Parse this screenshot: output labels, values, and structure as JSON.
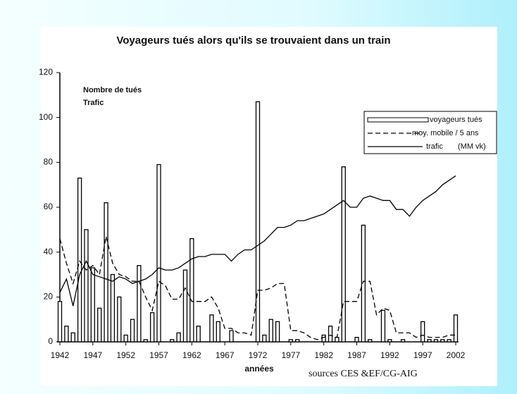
{
  "chart_data": {
    "type": "bar-line",
    "title": "Voyageurs tués alors qu'ils se trouvaient dans un train",
    "y_label_lines": [
      "Nombre de tués",
      "Trafic"
    ],
    "x_label": "années",
    "source": "sources CES &EF/CG-AIG",
    "x": [
      1942,
      1943,
      1944,
      1945,
      1946,
      1947,
      1948,
      1949,
      1950,
      1951,
      1952,
      1953,
      1954,
      1955,
      1956,
      1957,
      1958,
      1959,
      1960,
      1961,
      1962,
      1963,
      1964,
      1965,
      1966,
      1967,
      1968,
      1969,
      1970,
      1971,
      1972,
      1973,
      1974,
      1975,
      1976,
      1977,
      1978,
      1979,
      1980,
      1981,
      1982,
      1983,
      1984,
      1985,
      1986,
      1987,
      1988,
      1989,
      1990,
      1991,
      1992,
      1993,
      1994,
      1995,
      1996,
      1997,
      1998,
      1999,
      2000,
      2001,
      2002
    ],
    "xlim": [
      1942,
      2002
    ],
    "xticks": [
      1942,
      1947,
      1952,
      1957,
      1962,
      1967,
      1972,
      1977,
      1982,
      1987,
      1992,
      1997,
      2002
    ],
    "ylim": [
      0,
      120
    ],
    "yticks": [
      0,
      20,
      40,
      60,
      80,
      100,
      120
    ],
    "series": [
      {
        "name": "voyageurs tués",
        "style": "bar",
        "color": "#000000",
        "values": [
          18,
          7,
          4,
          73,
          50,
          33,
          15,
          62,
          30,
          20,
          3,
          10,
          34,
          1,
          13,
          79,
          0,
          1,
          4,
          32,
          46,
          7,
          0,
          12,
          9,
          0,
          5,
          0,
          0,
          0,
          107,
          3,
          10,
          9,
          0,
          1,
          1,
          0,
          0,
          0,
          3,
          7,
          2,
          78,
          0,
          2,
          52,
          1,
          0,
          14,
          1,
          0,
          1,
          0,
          0,
          9,
          1,
          1,
          1,
          1,
          12
        ]
      },
      {
        "name": "moy. mobile / 5 ans",
        "style": "dashed",
        "color": "#000000",
        "values": [
          46,
          35,
          26,
          36,
          32,
          34,
          30,
          47,
          35,
          30,
          29,
          27,
          27,
          20,
          14,
          27,
          25,
          19,
          19,
          24,
          18,
          18,
          18,
          20,
          15,
          6,
          6,
          4,
          4,
          3,
          23,
          23,
          24,
          26,
          26,
          5,
          5,
          4,
          2,
          1,
          2,
          3,
          2,
          18,
          18,
          18,
          27,
          27,
          12,
          15,
          14,
          4,
          4,
          4,
          2,
          3,
          2,
          2,
          2,
          3,
          3
        ]
      },
      {
        "name": "trafic",
        "unit": "(MM vk)",
        "style": "solid",
        "color": "#000000",
        "values": [
          22,
          28,
          16,
          30,
          36,
          30,
          29,
          28,
          27,
          29,
          28,
          26,
          27,
          28,
          30,
          33,
          32,
          32,
          33,
          35,
          37,
          38,
          38,
          39,
          39,
          39,
          36,
          39,
          41,
          41,
          43,
          45,
          48,
          51,
          51,
          52,
          54,
          54,
          55,
          56,
          57,
          59,
          61,
          63,
          60,
          60,
          64,
          65,
          64,
          63,
          63,
          59,
          59,
          56,
          60,
          63,
          65,
          67,
          70,
          72,
          74
        ]
      }
    ]
  }
}
